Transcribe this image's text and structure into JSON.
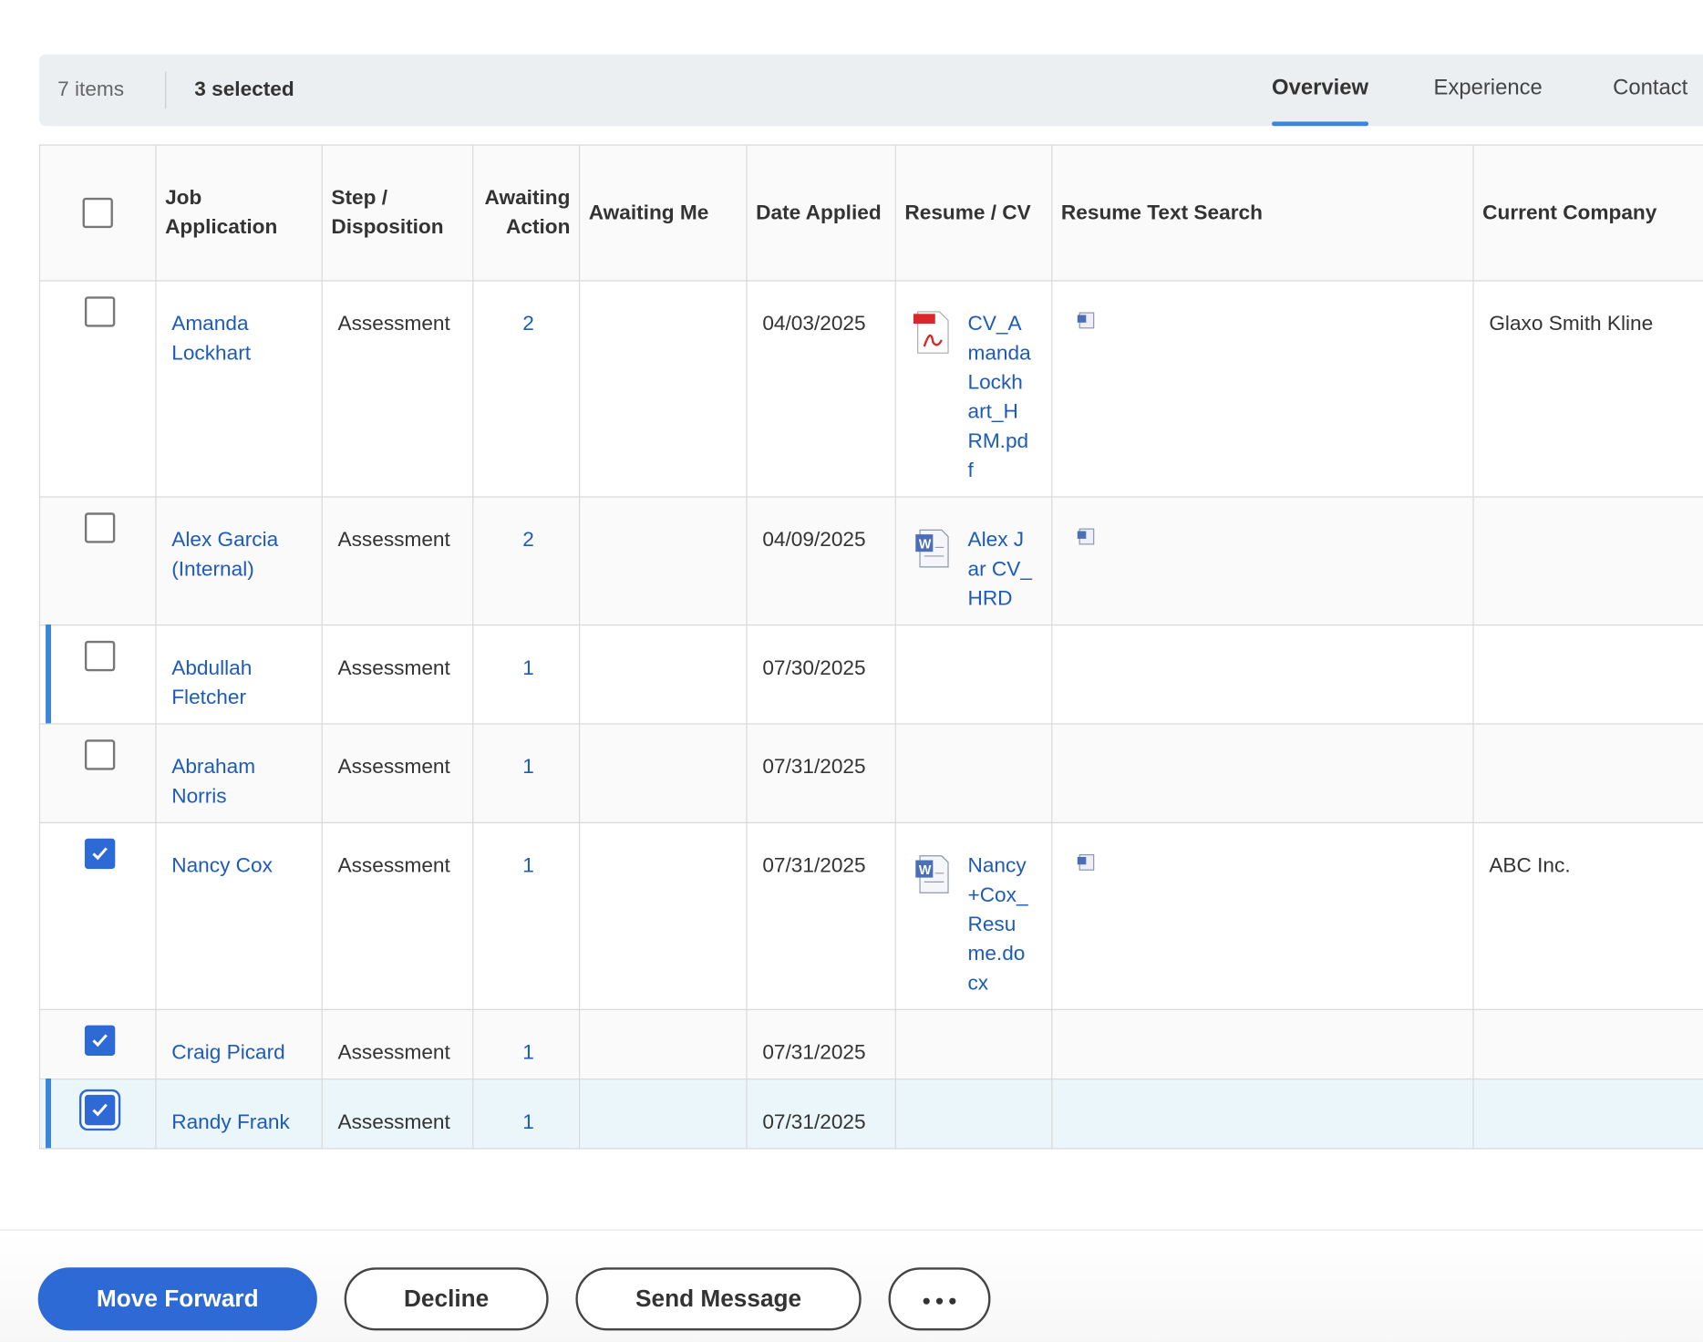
{
  "toolbar": {
    "count": "7 items",
    "selected": "3 selected",
    "tabs": [
      "Overview",
      "Experience",
      "Contact"
    ],
    "active_tab": 0
  },
  "table": {
    "columns": [
      "Job Application",
      "Step / Disposition",
      "Awaiting Action",
      "Awaiting Me",
      "Date Applied",
      "Resume / CV",
      "Resume Text Search",
      "Current Company"
    ],
    "rows": [
      {
        "name": "Amanda Lockhart",
        "step": "Assessment",
        "awaiting_action": 2,
        "date": "04/03/2025",
        "resume": "CV_AmandaLockhart_HRM.pdf",
        "company": "Glaxo Smith Kline",
        "selected": false
      },
      {
        "name": "Alex Garcia (Internal)",
        "step": "Assessment",
        "awaiting_action": 2,
        "date": "04/09/2025",
        "resume": "Alex Jar CV_HRD",
        "selected": false
      },
      {
        "name": "Abdullah Fletcher",
        "step": "Assessment",
        "awaiting_action": 1,
        "date": "07/30/2025",
        "selected": false
      },
      {
        "name": "Abraham Norris",
        "step": "Assessment",
        "awaiting_action": 1,
        "date": "07/31/2025",
        "selected": false
      },
      {
        "name": "Nancy Cox",
        "step": "Assessment",
        "awaiting_action": 1,
        "date": "07/31/2025",
        "resume": "Nancy+Cox_Resume.docx",
        "company": "ABC Inc.",
        "selected": true
      },
      {
        "name": "Craig Picard",
        "step": "Assessment",
        "awaiting_action": 1,
        "date": "07/31/2025",
        "selected": true
      },
      {
        "name": "Randy Frank",
        "step": "Assessment",
        "awaiting_action": 1,
        "date": "07/31/2025",
        "selected": true
      }
    ]
  },
  "buttons": [
    "Move Forward",
    "Decline",
    "Send Message"
  ]
}
